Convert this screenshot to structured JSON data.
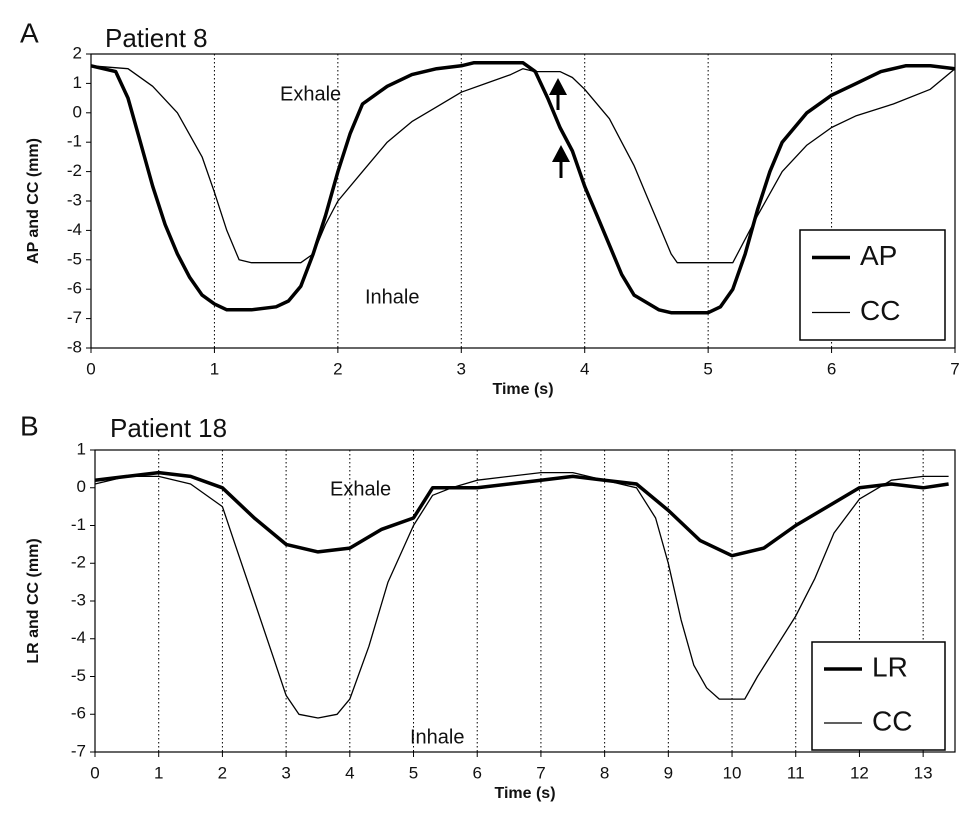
{
  "chart_data": [
    {
      "type": "line",
      "panel_label": "A",
      "title": "Patient 8",
      "xlabel": "Time (s)",
      "ylabel": "AP and CC (mm)",
      "xlim": [
        0,
        7
      ],
      "ylim": [
        -8,
        2
      ],
      "xticks": [
        0,
        1,
        2,
        3,
        4,
        5,
        6,
        7
      ],
      "yticks": [
        -8,
        -7,
        -6,
        -5,
        -4,
        -3,
        -2,
        -1,
        0,
        1,
        2
      ],
      "grid": "x",
      "legend": "lower right",
      "annotations": [
        "Exhale",
        "Inhale"
      ],
      "series": [
        {
          "name": "AP",
          "color": "#000000",
          "width": 3.5,
          "x": [
            0,
            0.2,
            0.3,
            0.4,
            0.5,
            0.6,
            0.7,
            0.8,
            0.9,
            1.0,
            1.1,
            1.3,
            1.5,
            1.6,
            1.7,
            1.8,
            1.9,
            2.0,
            2.1,
            2.2,
            2.4,
            2.6,
            2.8,
            3.0,
            3.1,
            3.5,
            3.6,
            3.7,
            3.8,
            3.9,
            4.0,
            4.1,
            4.2,
            4.3,
            4.4,
            4.6,
            4.7,
            5.0,
            5.1,
            5.2,
            5.3,
            5.4,
            5.5,
            5.6,
            5.8,
            6.0,
            6.2,
            6.4,
            6.6,
            6.8,
            7.0
          ],
          "values": [
            1.6,
            1.4,
            0.5,
            -1,
            -2.5,
            -3.8,
            -4.8,
            -5.6,
            -6.2,
            -6.5,
            -6.7,
            -6.7,
            -6.6,
            -6.4,
            -5.9,
            -4.8,
            -3.5,
            -2,
            -0.7,
            0.3,
            0.9,
            1.3,
            1.5,
            1.6,
            1.7,
            1.7,
            1.4,
            0.5,
            -0.5,
            -1.3,
            -2.5,
            -3.5,
            -4.5,
            -5.5,
            -6.2,
            -6.7,
            -6.8,
            -6.8,
            -6.6,
            -6,
            -4.8,
            -3.3,
            -2,
            -1,
            0,
            0.6,
            1.0,
            1.4,
            1.6,
            1.6,
            1.5
          ]
        },
        {
          "name": "CC",
          "color": "#000000",
          "width": 1.3,
          "x": [
            0,
            0.3,
            0.5,
            0.7,
            0.9,
            1.0,
            1.1,
            1.2,
            1.3,
            1.7,
            1.8,
            1.9,
            2.0,
            2.2,
            2.4,
            2.6,
            2.8,
            3.0,
            3.2,
            3.4,
            3.5,
            3.6,
            3.8,
            3.9,
            4.0,
            4.2,
            4.3,
            4.4,
            4.5,
            4.6,
            4.7,
            4.75,
            5.2,
            5.4,
            5.6,
            5.8,
            6.0,
            6.2,
            6.5,
            6.8,
            7.0
          ],
          "values": [
            1.6,
            1.5,
            0.9,
            0,
            -1.5,
            -2.7,
            -4,
            -5,
            -5.1,
            -5.1,
            -4.8,
            -3.8,
            -3,
            -2,
            -1,
            -0.3,
            0.2,
            0.7,
            1.0,
            1.3,
            1.5,
            1.4,
            1.4,
            1.2,
            0.8,
            -0.2,
            -1,
            -1.8,
            -2.8,
            -3.8,
            -4.8,
            -5.1,
            -5.1,
            -3.5,
            -2,
            -1.1,
            -0.5,
            -0.1,
            0.3,
            0.8,
            1.5
          ]
        }
      ]
    },
    {
      "type": "line",
      "panel_label": "B",
      "title": "Patient 18",
      "xlabel": "Time (s)",
      "ylabel": "LR and CC (mm)",
      "xlim": [
        0,
        13.5
      ],
      "ylim": [
        -7,
        1
      ],
      "xticks": [
        0,
        1,
        2,
        3,
        4,
        5,
        6,
        7,
        8,
        9,
        10,
        11,
        12,
        13
      ],
      "yticks": [
        -7,
        -6,
        -5,
        -4,
        -3,
        -2,
        -1,
        0,
        1
      ],
      "grid": "x",
      "legend": "lower right",
      "annotations": [
        "Exhale",
        "Inhale"
      ],
      "series": [
        {
          "name": "LR",
          "color": "#000000",
          "width": 3.5,
          "x": [
            0,
            0.5,
            1,
            1.5,
            2,
            2.5,
            3,
            3.5,
            4,
            4.5,
            5,
            5.3,
            5.6,
            6,
            7,
            7.5,
            8,
            8.5,
            9,
            9.5,
            10,
            10.5,
            11,
            11.5,
            12,
            12.5,
            13,
            13.4
          ],
          "values": [
            0.2,
            0.3,
            0.4,
            0.3,
            0,
            -0.8,
            -1.5,
            -1.7,
            -1.6,
            -1.1,
            -0.8,
            0,
            0,
            0,
            0.2,
            0.3,
            0.2,
            0.1,
            -0.6,
            -1.4,
            -1.8,
            -1.6,
            -1.0,
            -0.5,
            0,
            0.1,
            0,
            0.1
          ]
        },
        {
          "name": "CC",
          "color": "#000000",
          "width": 1.3,
          "x": [
            0,
            0.5,
            1,
            1.5,
            2,
            2.2,
            2.5,
            2.8,
            3,
            3.2,
            3.5,
            3.8,
            4,
            4.3,
            4.6,
            5,
            5.3,
            5.6,
            6,
            7,
            7.5,
            8,
            8.5,
            8.8,
            9,
            9.2,
            9.4,
            9.6,
            9.8,
            10.2,
            10.4,
            10.7,
            11,
            11.3,
            11.6,
            12,
            12.5,
            13,
            13.4
          ],
          "values": [
            0.1,
            0.3,
            0.3,
            0.1,
            -0.5,
            -1.5,
            -3,
            -4.5,
            -5.5,
            -6.0,
            -6.1,
            -6.0,
            -5.6,
            -4.2,
            -2.5,
            -1,
            -0.2,
            0,
            0.2,
            0.4,
            0.4,
            0.2,
            0,
            -0.8,
            -2,
            -3.5,
            -4.7,
            -5.3,
            -5.6,
            -5.6,
            -5,
            -4.2,
            -3.4,
            -2.4,
            -1.2,
            -0.3,
            0.2,
            0.3,
            0.3
          ]
        }
      ]
    }
  ]
}
